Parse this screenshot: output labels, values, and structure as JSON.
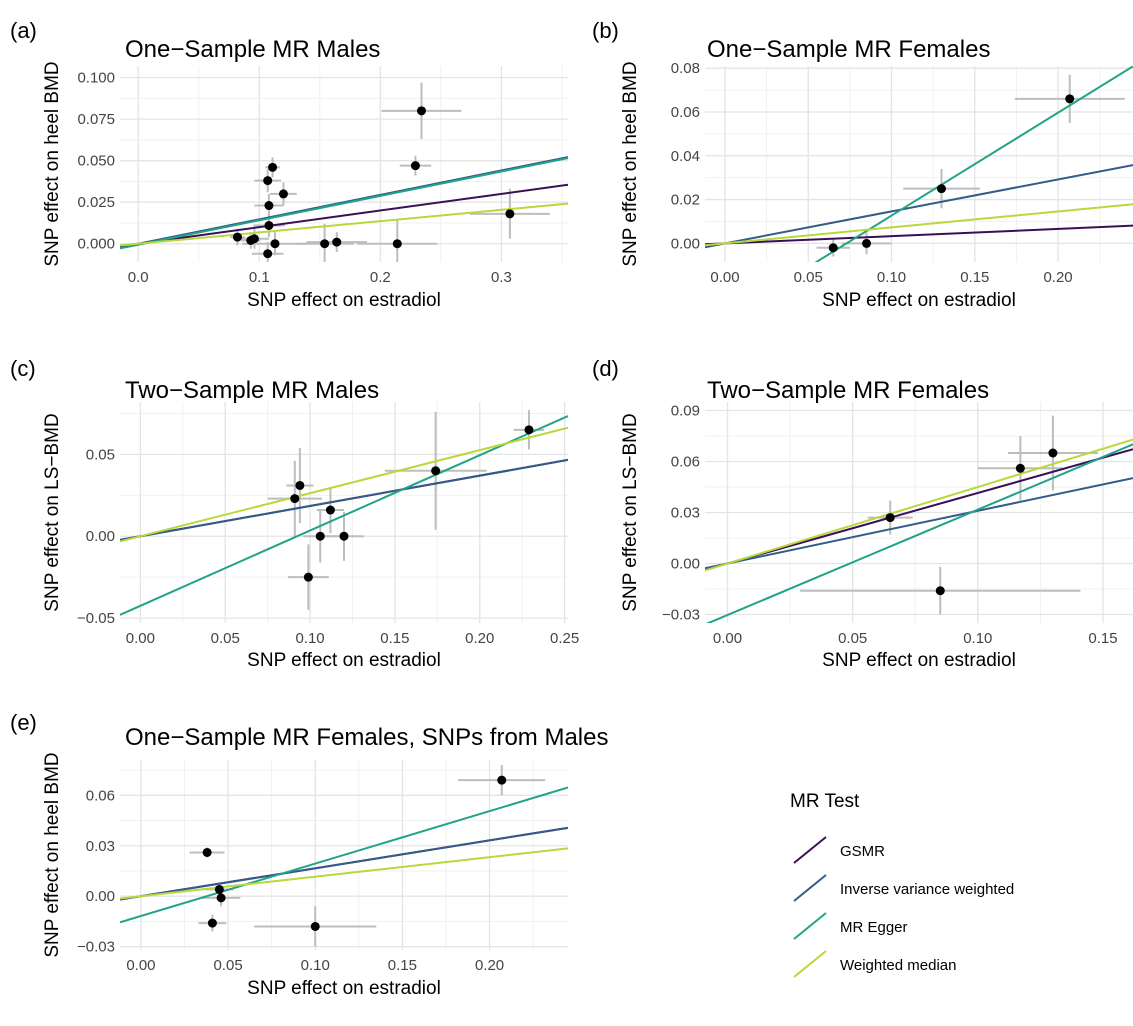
{
  "palette": {
    "GSMR": "#3b0f58",
    "Inverse variance weighted": "#345b89",
    "MR Egger": "#20a387",
    "Weighted median": "#b8d83b",
    "point": "#000000",
    "errorbar": "#bdbdbd",
    "grid_major": "#e4e4e4",
    "grid_minor": "#f1f1f1"
  },
  "legend": {
    "title": "MR Test",
    "items": [
      "GSMR",
      "Inverse variance weighted",
      "MR Egger",
      "Weighted median"
    ]
  },
  "chart_data": [
    {
      "type": "scatter",
      "panel_label": "(a)",
      "title": "One−Sample MR Males",
      "xlabel": "SNP effect on estradiol",
      "ylabel": "SNP effect on heel BMD",
      "xlim": [
        -0.015,
        0.355
      ],
      "ylim": [
        -0.011,
        0.107
      ],
      "xticks": [
        0.0,
        0.1,
        0.2,
        0.3
      ],
      "xticklabels": [
        "0.0",
        "0.1",
        "0.2",
        "0.3"
      ],
      "yticks": [
        0.0,
        0.025,
        0.05,
        0.075,
        0.1
      ],
      "yticklabels": [
        "0.000",
        "0.025",
        "0.050",
        "0.075",
        "0.100"
      ],
      "points": [
        {
          "x": 0.082,
          "y": 0.004,
          "xerr": 0.006,
          "yerr": 0.005
        },
        {
          "x": 0.093,
          "y": 0.002,
          "xerr": 0.008,
          "yerr": 0.005
        },
        {
          "x": 0.096,
          "y": 0.003,
          "xerr": 0.012,
          "yerr": 0.006
        },
        {
          "x": 0.107,
          "y": 0.038,
          "xerr": 0.011,
          "yerr": 0.007
        },
        {
          "x": 0.108,
          "y": 0.023,
          "xerr": 0.012,
          "yerr": 0.007
        },
        {
          "x": 0.108,
          "y": 0.011,
          "xerr": 0.013,
          "yerr": 0.007
        },
        {
          "x": 0.107,
          "y": -0.006,
          "xerr": 0.013,
          "yerr": 0.007
        },
        {
          "x": 0.111,
          "y": 0.046,
          "xerr": 0.006,
          "yerr": 0.006
        },
        {
          "x": 0.113,
          "y": 0.0,
          "xerr": 0.027,
          "yerr": 0.007
        },
        {
          "x": 0.12,
          "y": 0.03,
          "xerr": 0.011,
          "yerr": 0.007
        },
        {
          "x": 0.154,
          "y": 0.0,
          "xerr": 0.024,
          "yerr": 0.012
        },
        {
          "x": 0.164,
          "y": 0.001,
          "xerr": 0.025,
          "yerr": 0.006
        },
        {
          "x": 0.214,
          "y": 0.0,
          "xerr": 0.033,
          "yerr": 0.014
        },
        {
          "x": 0.229,
          "y": 0.047,
          "xerr": 0.013,
          "yerr": 0.006
        },
        {
          "x": 0.234,
          "y": 0.08,
          "xerr": 0.033,
          "yerr": 0.017
        },
        {
          "x": 0.307,
          "y": 0.018,
          "xerr": 0.033,
          "yerr": 0.015
        }
      ],
      "series": [
        {
          "name": "GSMR",
          "intercept": 0,
          "slope": 0.1
        },
        {
          "name": "Inverse variance weighted",
          "intercept": 0,
          "slope": 0.147
        },
        {
          "name": "MR Egger",
          "intercept": -0.0006,
          "slope": 0.147
        },
        {
          "name": "Weighted median",
          "intercept": 0,
          "slope": 0.068
        }
      ]
    },
    {
      "type": "scatter",
      "panel_label": "(b)",
      "title": "One−Sample MR Females",
      "xlabel": "SNP effect on estradiol",
      "ylabel": "SNP effect on heel BMD",
      "xlim": [
        -0.012,
        0.245
      ],
      "ylim": [
        -0.0085,
        0.081
      ],
      "xticks": [
        0.0,
        0.05,
        0.1,
        0.15,
        0.2
      ],
      "xticklabels": [
        "0.00",
        "0.05",
        "0.10",
        "0.15",
        "0.20"
      ],
      "yticks": [
        0.0,
        0.02,
        0.04,
        0.06,
        0.08
      ],
      "yticklabels": [
        "0.00",
        "0.02",
        "0.04",
        "0.06",
        "0.08"
      ],
      "points": [
        {
          "x": 0.065,
          "y": -0.002,
          "xerr": 0.01,
          "yerr": 0.004
        },
        {
          "x": 0.085,
          "y": 0.0,
          "xerr": 0.015,
          "yerr": 0.005
        },
        {
          "x": 0.13,
          "y": 0.025,
          "xerr": 0.023,
          "yerr": 0.009
        },
        {
          "x": 0.207,
          "y": 0.066,
          "xerr": 0.033,
          "yerr": 0.011
        }
      ],
      "series": [
        {
          "name": "GSMR",
          "intercept": 0,
          "slope": 0.033
        },
        {
          "name": "Inverse variance weighted",
          "intercept": 0,
          "slope": 0.146
        },
        {
          "name": "MR Egger",
          "intercept": -0.0343,
          "slope": 0.47
        },
        {
          "name": "Weighted median",
          "intercept": 0,
          "slope": 0.073
        }
      ]
    },
    {
      "type": "scatter",
      "panel_label": "(c)",
      "title": "Two−Sample MR Males",
      "xlabel": "SNP effect on estradiol",
      "ylabel": "SNP effect on LS−BMD",
      "xlim": [
        -0.012,
        0.252
      ],
      "ylim": [
        -0.053,
        0.082
      ],
      "xticks": [
        0.0,
        0.05,
        0.1,
        0.15,
        0.2,
        0.25
      ],
      "xticklabels": [
        "0.00",
        "0.05",
        "0.10",
        "0.15",
        "0.20",
        "0.25"
      ],
      "yticks": [
        -0.05,
        0.0,
        0.05
      ],
      "yticklabels": [
        "−0.05",
        "0.00",
        "0.05"
      ],
      "points": [
        {
          "x": 0.091,
          "y": 0.023,
          "xerr": 0.016,
          "yerr": 0.023
        },
        {
          "x": 0.094,
          "y": 0.031,
          "xerr": 0.008,
          "yerr": 0.023
        },
        {
          "x": 0.099,
          "y": -0.025,
          "xerr": 0.012,
          "yerr": 0.02
        },
        {
          "x": 0.106,
          "y": 0.0,
          "xerr": 0.01,
          "yerr": 0.016
        },
        {
          "x": 0.112,
          "y": 0.016,
          "xerr": 0.008,
          "yerr": 0.014
        },
        {
          "x": 0.12,
          "y": 0.0,
          "xerr": 0.012,
          "yerr": 0.015
        },
        {
          "x": 0.174,
          "y": 0.04,
          "xerr": 0.03,
          "yerr": 0.036
        },
        {
          "x": 0.229,
          "y": 0.065,
          "xerr": 0.009,
          "yerr": 0.012
        }
      ],
      "series": [
        {
          "name": "GSMR",
          "intercept": 0,
          "slope": 0.185
        },
        {
          "name": "Inverse variance weighted",
          "intercept": 0,
          "slope": 0.185
        },
        {
          "name": "MR Egger",
          "intercept": -0.0425,
          "slope": 0.46
        },
        {
          "name": "Weighted median",
          "intercept": 0,
          "slope": 0.263
        }
      ]
    },
    {
      "type": "scatter",
      "panel_label": "(d)",
      "title": "Two−Sample MR Females",
      "xlabel": "SNP effect on estradiol",
      "ylabel": "SNP effect on LS−BMD",
      "xlim": [
        -0.009,
        0.162
      ],
      "ylim": [
        -0.035,
        0.095
      ],
      "xticks": [
        0.0,
        0.05,
        0.1,
        0.15
      ],
      "xticklabels": [
        "0.00",
        "0.05",
        "0.10",
        "0.15"
      ],
      "yticks": [
        -0.03,
        0.0,
        0.03,
        0.06,
        0.09
      ],
      "yticklabels": [
        "−0.03",
        "0.00",
        "0.03",
        "0.06",
        "0.09"
      ],
      "points": [
        {
          "x": 0.065,
          "y": 0.027,
          "xerr": 0.009,
          "yerr": 0.01
        },
        {
          "x": 0.085,
          "y": -0.016,
          "xerr": 0.056,
          "yerr": 0.014
        },
        {
          "x": 0.117,
          "y": 0.056,
          "xerr": 0.017,
          "yerr": 0.019
        },
        {
          "x": 0.13,
          "y": 0.065,
          "xerr": 0.018,
          "yerr": 0.022
        }
      ],
      "series": [
        {
          "name": "GSMR",
          "intercept": 0,
          "slope": 0.415
        },
        {
          "name": "Inverse variance weighted",
          "intercept": 0,
          "slope": 0.31
        },
        {
          "name": "MR Egger",
          "intercept": -0.0303,
          "slope": 0.62
        },
        {
          "name": "Weighted median",
          "intercept": 0,
          "slope": 0.45
        }
      ]
    },
    {
      "type": "scatter",
      "panel_label": "(e)",
      "title": "One−Sample MR Females, SNPs from Males",
      "xlabel": "SNP effect on estradiol",
      "ylabel": "SNP effect on heel BMD",
      "xlim": [
        -0.012,
        0.245
      ],
      "ylim": [
        -0.032,
        0.081
      ],
      "xticks": [
        0.0,
        0.05,
        0.1,
        0.15,
        0.2
      ],
      "xticklabels": [
        "0.00",
        "0.05",
        "0.10",
        "0.15",
        "0.20"
      ],
      "yticks": [
        -0.03,
        0.0,
        0.03,
        0.06
      ],
      "yticklabels": [
        "−0.03",
        "0.00",
        "0.03",
        "0.06"
      ],
      "points": [
        {
          "x": 0.038,
          "y": 0.026,
          "xerr": 0.01,
          "yerr": 0.003
        },
        {
          "x": 0.041,
          "y": -0.016,
          "xerr": 0.008,
          "yerr": 0.005
        },
        {
          "x": 0.045,
          "y": 0.004,
          "xerr": 0.008,
          "yerr": 0.004
        },
        {
          "x": 0.046,
          "y": -0.001,
          "xerr": 0.011,
          "yerr": 0.005
        },
        {
          "x": 0.1,
          "y": -0.018,
          "xerr": 0.035,
          "yerr": 0.012
        },
        {
          "x": 0.207,
          "y": 0.069,
          "xerr": 0.025,
          "yerr": 0.009
        }
      ],
      "series": [
        {
          "name": "GSMR",
          "intercept": 0,
          "slope": 0.166
        },
        {
          "name": "Inverse variance weighted",
          "intercept": 0,
          "slope": 0.166
        },
        {
          "name": "MR Egger",
          "intercept": -0.0118,
          "slope": 0.312
        },
        {
          "name": "Weighted median",
          "intercept": 0,
          "slope": 0.116
        }
      ]
    }
  ]
}
